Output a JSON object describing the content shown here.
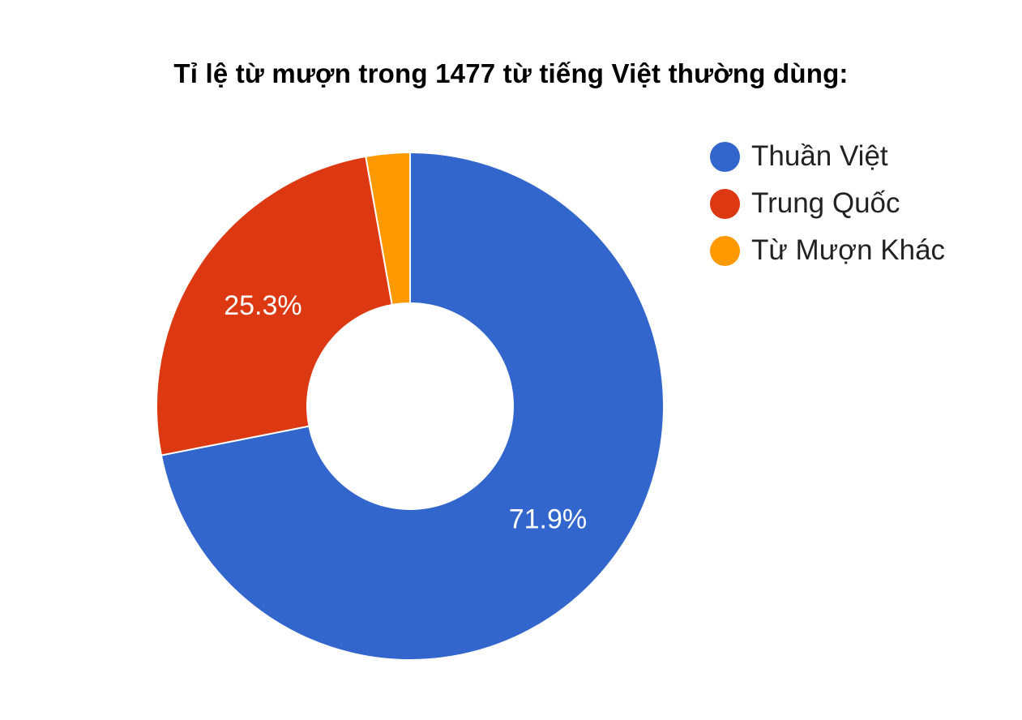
{
  "chart_data": {
    "type": "pie",
    "title": "Tỉ lệ từ mượn trong 1477 từ tiếng Việt thường dùng:",
    "donut": true,
    "legend_position": "right",
    "series": [
      {
        "name": "Thuần Việt",
        "value": 71.9,
        "label": "71.9%",
        "color": "#3366cc"
      },
      {
        "name": "Trung Quốc",
        "value": 25.3,
        "label": "25.3%",
        "color": "#dc3912"
      },
      {
        "name": "Từ Mượn Khác",
        "value": 2.8,
        "label": "",
        "color": "#ff9900"
      }
    ]
  }
}
